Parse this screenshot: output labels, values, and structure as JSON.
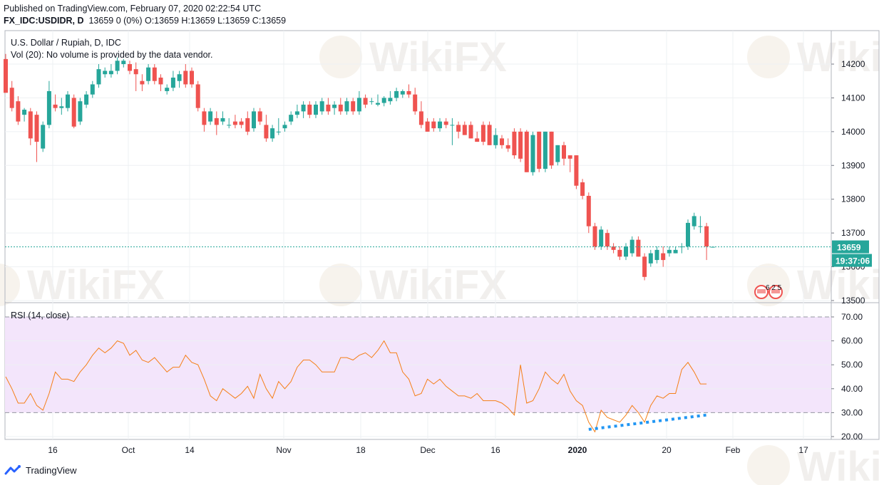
{
  "header": {
    "published": "Published on TradingView.com, February 07, 2020 02:22:54 UTC",
    "symbol": "FX_IDC:USDIDR, D",
    "ohlc": "13659 0 (0%) O:13659 H:13659 L:13659 C:13659"
  },
  "legend": {
    "title": "U.S. Dollar / Rupiah, D, IDC",
    "volume": "Vol (20): No volume is provided by the data vendor.",
    "rsi": "RSI (14, close)"
  },
  "price_badge": "13659",
  "countdown_badge": "19:37:06",
  "price_ticks": [
    "14200",
    "14100",
    "14000",
    "13900",
    "13800",
    "13700",
    "13600",
    "13500"
  ],
  "rsi_ticks": [
    "70.00",
    "60.00",
    "50.00",
    "40.00",
    "30.00",
    "20.00"
  ],
  "time_labels": [
    "16",
    "Oct",
    "14",
    "Nov",
    "18",
    "Dec",
    "16",
    "2020",
    "20",
    "Feb",
    "17"
  ],
  "events_badge": "6 2 5",
  "watermark": "WikiFX",
  "footer": {
    "brand": "TradingView"
  },
  "colors": {
    "up": "#26a69a",
    "down": "#ef5350",
    "rsi_line": "#f57f17",
    "rsi_band": "#f3e5fb",
    "divergence": "#2196f3",
    "grid": "#eef0f3",
    "current_line": "#26a69a"
  },
  "chart_data": [
    {
      "type": "candlestick",
      "title": "U.S. Dollar / Rupiah, D, IDC",
      "ylim": [
        13480,
        14260
      ],
      "last_price": 13659,
      "x_tick_labels": [
        "16",
        "Oct",
        "14",
        "Nov",
        "18",
        "Dec",
        "16",
        "2020",
        "20",
        "Feb",
        "17"
      ],
      "y_tick_labels": [
        14200,
        14100,
        14000,
        13900,
        13800,
        13700,
        13600,
        13500
      ],
      "candles": [
        {
          "o": 14215,
          "h": 14230,
          "l": 14120,
          "c": 14115
        },
        {
          "o": 14130,
          "h": 14150,
          "l": 14060,
          "c": 14070
        },
        {
          "o": 14090,
          "h": 14105,
          "l": 14020,
          "c": 14030
        },
        {
          "o": 14050,
          "h": 14070,
          "l": 14030,
          "c": 14065
        },
        {
          "o": 14060,
          "h": 14070,
          "l": 13960,
          "c": 13980
        },
        {
          "o": 14050,
          "h": 14060,
          "l": 13910,
          "c": 13970
        },
        {
          "o": 13950,
          "h": 14030,
          "l": 13940,
          "c": 14020
        },
        {
          "o": 14020,
          "h": 14150,
          "l": 14010,
          "c": 14120
        },
        {
          "o": 14080,
          "h": 14110,
          "l": 14060,
          "c": 14070
        },
        {
          "o": 14070,
          "h": 14100,
          "l": 14050,
          "c": 14075
        },
        {
          "o": 14070,
          "h": 14120,
          "l": 14060,
          "c": 14110
        },
        {
          "o": 14100,
          "h": 14110,
          "l": 14010,
          "c": 14015
        },
        {
          "o": 14030,
          "h": 14100,
          "l": 14020,
          "c": 14090
        },
        {
          "o": 14080,
          "h": 14120,
          "l": 14070,
          "c": 14110
        },
        {
          "o": 14110,
          "h": 14150,
          "l": 14100,
          "c": 14140
        },
        {
          "o": 14140,
          "h": 14200,
          "l": 14130,
          "c": 14185
        },
        {
          "o": 14170,
          "h": 14190,
          "l": 14160,
          "c": 14180
        },
        {
          "o": 14170,
          "h": 14200,
          "l": 14160,
          "c": 14180
        },
        {
          "o": 14180,
          "h": 14220,
          "l": 14170,
          "c": 14210
        },
        {
          "o": 14200,
          "h": 14215,
          "l": 14190,
          "c": 14210
        },
        {
          "o": 14200,
          "h": 14210,
          "l": 14170,
          "c": 14180
        },
        {
          "o": 14185,
          "h": 14205,
          "l": 14120,
          "c": 14170
        },
        {
          "o": 14150,
          "h": 14170,
          "l": 14120,
          "c": 14140
        },
        {
          "o": 14150,
          "h": 14200,
          "l": 14140,
          "c": 14190
        },
        {
          "o": 14190,
          "h": 14200,
          "l": 14140,
          "c": 14150
        },
        {
          "o": 14160,
          "h": 14170,
          "l": 14120,
          "c": 14140
        },
        {
          "o": 14120,
          "h": 14140,
          "l": 14110,
          "c": 14130
        },
        {
          "o": 14130,
          "h": 14180,
          "l": 14120,
          "c": 14160
        },
        {
          "o": 14150,
          "h": 14180,
          "l": 14130,
          "c": 14170
        },
        {
          "o": 14180,
          "h": 14200,
          "l": 14130,
          "c": 14140
        },
        {
          "o": 14180,
          "h": 14190,
          "l": 14130,
          "c": 14140
        },
        {
          "o": 14140,
          "h": 14150,
          "l": 14060,
          "c": 14070
        },
        {
          "o": 14060,
          "h": 14070,
          "l": 14000,
          "c": 14020
        },
        {
          "o": 14030,
          "h": 14070,
          "l": 14020,
          "c": 14060
        },
        {
          "o": 14040,
          "h": 14060,
          "l": 13990,
          "c": 14020
        },
        {
          "o": 14030,
          "h": 14060,
          "l": 14020,
          "c": 14040
        },
        {
          "o": 14020,
          "h": 14040,
          "l": 14010,
          "c": 14020
        },
        {
          "o": 14030,
          "h": 14050,
          "l": 14010,
          "c": 14020
        },
        {
          "o": 14030,
          "h": 14040,
          "l": 14010,
          "c": 14020
        },
        {
          "o": 14040,
          "h": 14060,
          "l": 13990,
          "c": 14000
        },
        {
          "o": 14010,
          "h": 14070,
          "l": 14000,
          "c": 14060
        },
        {
          "o": 14060,
          "h": 14070,
          "l": 14020,
          "c": 14030
        },
        {
          "o": 14020,
          "h": 14050,
          "l": 13970,
          "c": 13980
        },
        {
          "o": 13980,
          "h": 14020,
          "l": 13970,
          "c": 14010
        },
        {
          "o": 14000,
          "h": 14040,
          "l": 13990,
          "c": 14000
        },
        {
          "o": 14010,
          "h": 14030,
          "l": 14000,
          "c": 14020
        },
        {
          "o": 14030,
          "h": 14060,
          "l": 14020,
          "c": 14050
        },
        {
          "o": 14050,
          "h": 14080,
          "l": 14040,
          "c": 14060
        },
        {
          "o": 14060,
          "h": 14090,
          "l": 14040,
          "c": 14080
        },
        {
          "o": 14080,
          "h": 14090,
          "l": 14040,
          "c": 14050
        },
        {
          "o": 14050,
          "h": 14090,
          "l": 14040,
          "c": 14080
        },
        {
          "o": 14060,
          "h": 14100,
          "l": 14050,
          "c": 14090
        },
        {
          "o": 14080,
          "h": 14100,
          "l": 14050,
          "c": 14060
        },
        {
          "o": 14070,
          "h": 14090,
          "l": 14050,
          "c": 14080
        },
        {
          "o": 14080,
          "h": 14100,
          "l": 14050,
          "c": 14060
        },
        {
          "o": 14060,
          "h": 14100,
          "l": 14050,
          "c": 14090
        },
        {
          "o": 14090,
          "h": 14100,
          "l": 14050,
          "c": 14060
        },
        {
          "o": 14060,
          "h": 14120,
          "l": 14050,
          "c": 14100
        },
        {
          "o": 14100,
          "h": 14110,
          "l": 14070,
          "c": 14080
        },
        {
          "o": 14090,
          "h": 14100,
          "l": 14080,
          "c": 14090
        },
        {
          "o": 14080,
          "h": 14110,
          "l": 14075,
          "c": 14085
        },
        {
          "o": 14085,
          "h": 14105,
          "l": 14075,
          "c": 14100
        },
        {
          "o": 14090,
          "h": 14120,
          "l": 14080,
          "c": 14100
        },
        {
          "o": 14100,
          "h": 14130,
          "l": 14090,
          "c": 14120
        },
        {
          "o": 14110,
          "h": 14125,
          "l": 14100,
          "c": 14120
        },
        {
          "o": 14120,
          "h": 14140,
          "l": 14100,
          "c": 14110
        },
        {
          "o": 14110,
          "h": 14130,
          "l": 14050,
          "c": 14060
        },
        {
          "o": 14060,
          "h": 14090,
          "l": 14010,
          "c": 14020
        },
        {
          "o": 14030,
          "h": 14040,
          "l": 14000,
          "c": 14000
        },
        {
          "o": 14030,
          "h": 14040,
          "l": 14000,
          "c": 14010
        },
        {
          "o": 14010,
          "h": 14040,
          "l": 14000,
          "c": 14030
        },
        {
          "o": 14030,
          "h": 14040,
          "l": 14010,
          "c": 14020
        },
        {
          "o": 14020,
          "h": 14040,
          "l": 13960,
          "c": 14020
        },
        {
          "o": 14020,
          "h": 14030,
          "l": 13980,
          "c": 14000
        },
        {
          "o": 14020,
          "h": 14030,
          "l": 13990,
          "c": 13990
        },
        {
          "o": 14020,
          "h": 14030,
          "l": 13980,
          "c": 13980
        },
        {
          "o": 13980,
          "h": 14000,
          "l": 13970,
          "c": 13970
        },
        {
          "o": 14020,
          "h": 14030,
          "l": 13960,
          "c": 13970
        },
        {
          "o": 14020,
          "h": 14030,
          "l": 13960,
          "c": 13960
        },
        {
          "o": 13960,
          "h": 14010,
          "l": 13950,
          "c": 13990
        },
        {
          "o": 13980,
          "h": 13990,
          "l": 13950,
          "c": 13960
        },
        {
          "o": 13960,
          "h": 13980,
          "l": 13940,
          "c": 13950
        },
        {
          "o": 14000,
          "h": 14010,
          "l": 13920,
          "c": 13930
        },
        {
          "o": 14000,
          "h": 14010,
          "l": 13910,
          "c": 13920
        },
        {
          "o": 14000,
          "h": 14005,
          "l": 13880,
          "c": 13880
        },
        {
          "o": 13880,
          "h": 14000,
          "l": 13870,
          "c": 13990
        },
        {
          "o": 14000,
          "h": 14000,
          "l": 13880,
          "c": 13890
        },
        {
          "o": 13890,
          "h": 14000,
          "l": 13880,
          "c": 14000
        },
        {
          "o": 14000,
          "h": 14000,
          "l": 13890,
          "c": 13900
        },
        {
          "o": 13910,
          "h": 13960,
          "l": 13900,
          "c": 13960
        },
        {
          "o": 13960,
          "h": 13970,
          "l": 13900,
          "c": 13920
        },
        {
          "o": 13930,
          "h": 13930,
          "l": 13880,
          "c": 13920
        },
        {
          "o": 13930,
          "h": 13930,
          "l": 13830,
          "c": 13840
        },
        {
          "o": 13850,
          "h": 13860,
          "l": 13800,
          "c": 13810
        },
        {
          "o": 13810,
          "h": 13820,
          "l": 13700,
          "c": 13720
        },
        {
          "o": 13720,
          "h": 13730,
          "l": 13650,
          "c": 13660
        },
        {
          "o": 13660,
          "h": 13720,
          "l": 13650,
          "c": 13710
        },
        {
          "o": 13700,
          "h": 13710,
          "l": 13650,
          "c": 13660
        },
        {
          "o": 13660,
          "h": 13670,
          "l": 13640,
          "c": 13650
        },
        {
          "o": 13650,
          "h": 13660,
          "l": 13620,
          "c": 13630
        },
        {
          "o": 13630,
          "h": 13670,
          "l": 13620,
          "c": 13660
        },
        {
          "o": 13640,
          "h": 13690,
          "l": 13630,
          "c": 13680
        },
        {
          "o": 13680,
          "h": 13690,
          "l": 13630,
          "c": 13630
        },
        {
          "o": 13630,
          "h": 13640,
          "l": 13560,
          "c": 13570
        },
        {
          "o": 13610,
          "h": 13650,
          "l": 13600,
          "c": 13640
        },
        {
          "o": 13620,
          "h": 13660,
          "l": 13610,
          "c": 13650
        },
        {
          "o": 13640,
          "h": 13660,
          "l": 13600,
          "c": 13620
        },
        {
          "o": 13640,
          "h": 13660,
          "l": 13630,
          "c": 13650
        },
        {
          "o": 13640,
          "h": 13660,
          "l": 13640,
          "c": 13650
        },
        {
          "o": 13660,
          "h": 13670,
          "l": 13640,
          "c": 13660
        },
        {
          "o": 13660,
          "h": 13740,
          "l": 13650,
          "c": 13730
        },
        {
          "o": 13720,
          "h": 13760,
          "l": 13710,
          "c": 13750
        },
        {
          "o": 13720,
          "h": 13750,
          "l": 13700,
          "c": 13720
        },
        {
          "o": 13720,
          "h": 13730,
          "l": 13620,
          "c": 13660
        },
        {
          "o": 13659,
          "h": 13659,
          "l": 13659,
          "c": 13659
        }
      ]
    },
    {
      "type": "line",
      "title": "RSI (14, close)",
      "ylim": [
        17,
        73
      ],
      "bands": [
        30,
        70
      ],
      "y_tick_labels": [
        70,
        60,
        50,
        40,
        30,
        20
      ],
      "values": [
        45,
        40,
        34,
        34,
        38,
        33,
        31,
        38,
        47,
        44,
        44,
        43,
        47,
        50,
        54,
        57,
        55,
        57,
        60,
        59,
        54,
        56,
        52,
        51,
        53,
        50,
        47,
        49,
        49,
        54,
        51,
        50,
        44,
        37,
        35,
        40,
        38,
        36,
        38,
        41,
        36,
        46,
        40,
        36,
        43,
        40,
        43,
        49,
        52,
        52,
        50,
        47,
        47,
        47,
        53,
        53,
        52,
        54,
        55,
        53,
        56,
        60,
        55,
        55,
        47,
        44,
        37,
        38,
        44,
        42,
        44,
        41,
        39,
        37,
        37,
        36,
        38,
        35,
        35,
        35,
        34,
        32,
        29,
        50,
        34,
        35,
        40,
        47,
        44,
        42,
        46,
        39,
        35,
        33,
        26,
        22,
        31,
        28,
        27,
        26,
        29,
        33,
        30,
        26,
        33,
        37,
        36,
        38,
        38,
        48,
        51,
        47,
        42,
        42
      ],
      "divergence_line": {
        "from_index": 94,
        "to_index": 113,
        "from_value": 23,
        "to_value": 29
      }
    }
  ]
}
